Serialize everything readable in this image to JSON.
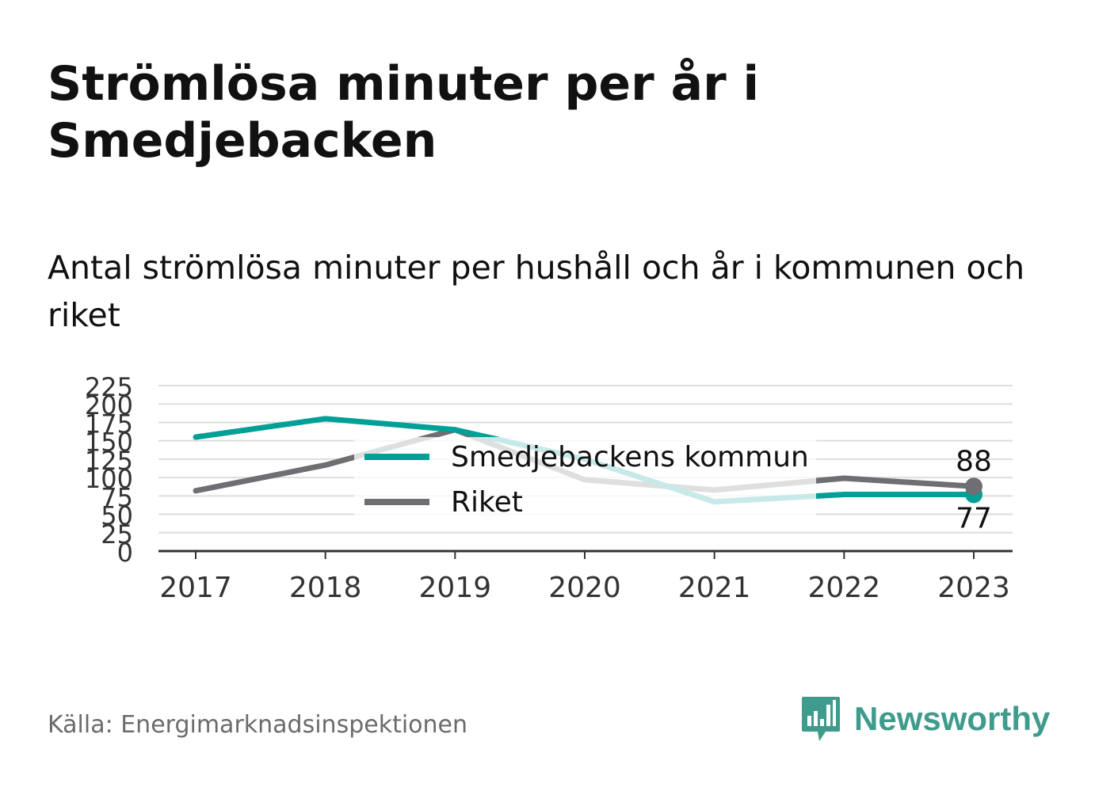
{
  "title": "Strömlösa minuter per år i Smedjebacken",
  "subtitle": "Antal strömlösa minuter per hushåll och år i kommunen och riket",
  "source": "Källa: Energimarknadsinspektionen",
  "brand": {
    "name": "Newsworthy",
    "logo_icon": "bar-chart-speech-bubble-icon",
    "color": "#3f9b8c"
  },
  "chart_data": {
    "type": "line",
    "categories": [
      "2017",
      "2018",
      "2019",
      "2020",
      "2021",
      "2022",
      "2023"
    ],
    "ylim": [
      0,
      225
    ],
    "yticks": [
      "0",
      "25",
      "50",
      "75",
      "100",
      "125",
      "150",
      "175",
      "200",
      "225"
    ],
    "grid": true,
    "legend_position": "center",
    "series": [
      {
        "name": "Smedjebackens kommun",
        "color": "#00a096",
        "values": [
          155,
          180,
          165,
          125,
          67,
          77,
          77
        ],
        "end_label": "77"
      },
      {
        "name": "Riket",
        "color": "#6e6e73",
        "values": [
          82,
          117,
          165,
          97,
          83,
          99,
          88
        ],
        "end_label": "88"
      }
    ]
  }
}
